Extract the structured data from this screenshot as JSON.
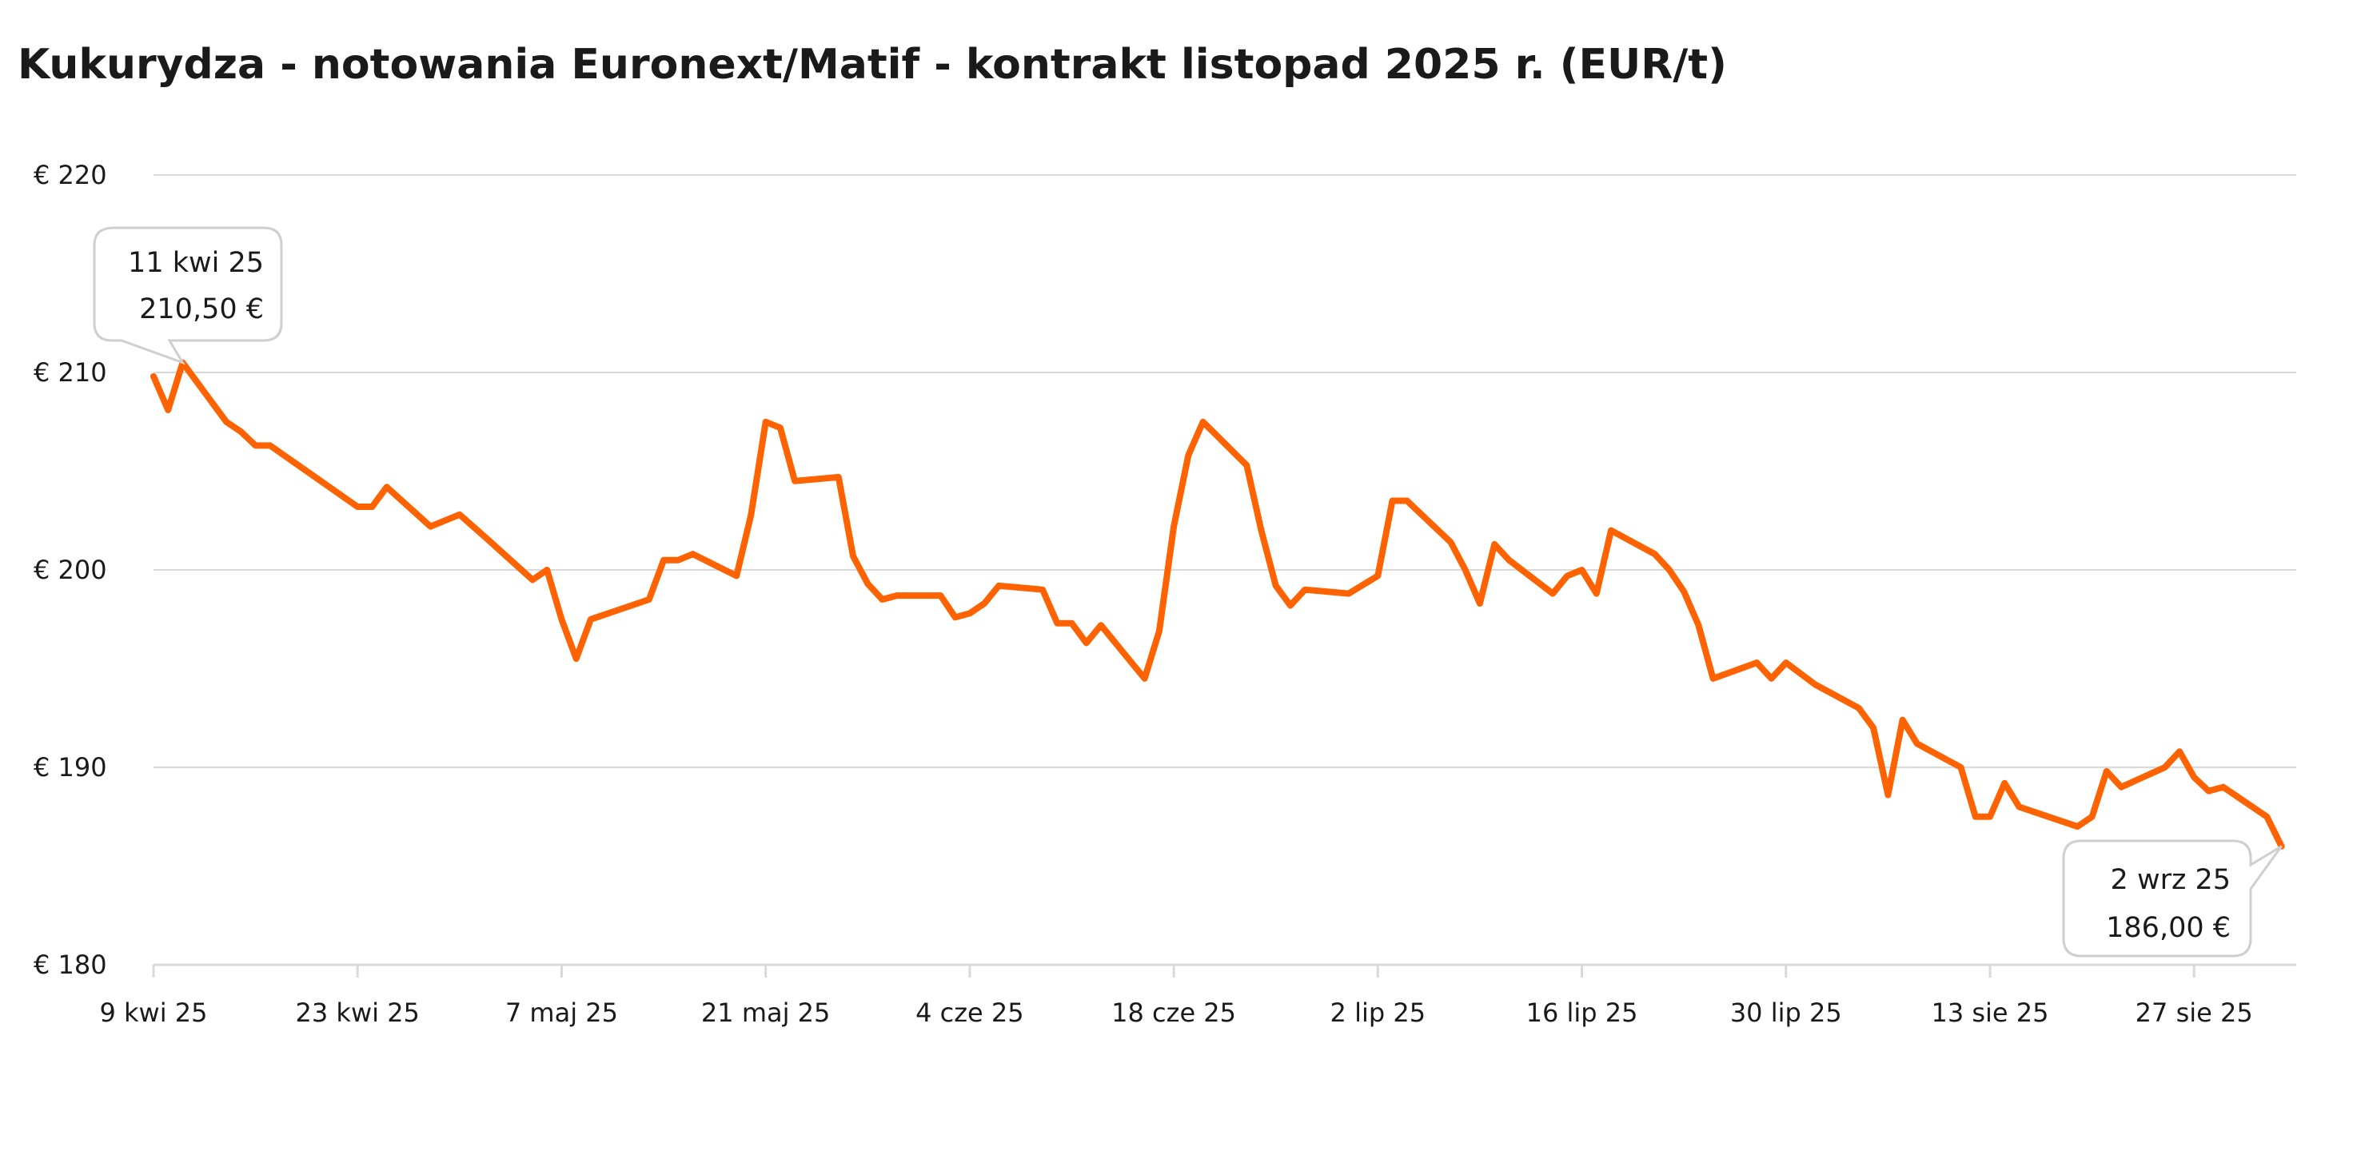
{
  "chart_data": {
    "type": "line",
    "title": "Kukurydza - notowania Euronext/Matif - kontrakt listopad 2025 r. (EUR/t)",
    "xlabel": "",
    "ylabel": "",
    "ylim": [
      180,
      220
    ],
    "xlim": [
      "2025-04-09",
      "2025-09-02"
    ],
    "yticks": [
      {
        "value": 180,
        "label": "€ 180"
      },
      {
        "value": 190,
        "label": "€ 190"
      },
      {
        "value": 200,
        "label": "€ 200"
      },
      {
        "value": 210,
        "label": "€ 210"
      },
      {
        "value": 220,
        "label": "€ 220"
      }
    ],
    "xticks": [
      {
        "date": "2025-04-09",
        "label": "9 kwi 25"
      },
      {
        "date": "2025-04-23",
        "label": "23 kwi 25"
      },
      {
        "date": "2025-05-07",
        "label": "7 maj 25"
      },
      {
        "date": "2025-05-21",
        "label": "21 maj 25"
      },
      {
        "date": "2025-06-04",
        "label": "4 cze 25"
      },
      {
        "date": "2025-06-18",
        "label": "18 cze 25"
      },
      {
        "date": "2025-07-02",
        "label": "2 lip 25"
      },
      {
        "date": "2025-07-16",
        "label": "16 lip 25"
      },
      {
        "date": "2025-07-30",
        "label": "30 lip 25"
      },
      {
        "date": "2025-08-13",
        "label": "13 sie 25"
      },
      {
        "date": "2025-08-27",
        "label": "27 sie 25"
      }
    ],
    "grid": true,
    "line_color": "#ff6200",
    "grid_color": "#d9d9d9",
    "series": [
      {
        "points": [
          [
            "2025-04-09",
            209.8
          ],
          [
            "2025-04-10",
            208.1
          ],
          [
            "2025-04-11",
            210.5
          ],
          [
            "2025-04-14",
            207.5
          ],
          [
            "2025-04-15",
            207.0
          ],
          [
            "2025-04-16",
            206.3
          ],
          [
            "2025-04-17",
            206.3
          ],
          [
            "2025-04-23",
            203.2
          ],
          [
            "2025-04-24",
            203.2
          ],
          [
            "2025-04-25",
            204.2
          ],
          [
            "2025-04-28",
            202.2
          ],
          [
            "2025-04-30",
            202.8
          ],
          [
            "2025-05-02",
            201.5
          ],
          [
            "2025-05-05",
            199.5
          ],
          [
            "2025-05-06",
            200.0
          ],
          [
            "2025-05-07",
            197.5
          ],
          [
            "2025-05-08",
            195.5
          ],
          [
            "2025-05-09",
            197.5
          ],
          [
            "2025-05-13",
            198.5
          ],
          [
            "2025-05-14",
            200.5
          ],
          [
            "2025-05-15",
            200.5
          ],
          [
            "2025-05-16",
            200.8
          ],
          [
            "2025-05-19",
            199.7
          ],
          [
            "2025-05-20",
            202.8
          ],
          [
            "2025-05-21",
            207.5
          ],
          [
            "2025-05-22",
            207.2
          ],
          [
            "2025-05-23",
            204.5
          ],
          [
            "2025-05-26",
            204.7
          ],
          [
            "2025-05-27",
            200.7
          ],
          [
            "2025-05-28",
            199.3
          ],
          [
            "2025-05-29",
            198.5
          ],
          [
            "2025-05-30",
            198.7
          ],
          [
            "2025-06-02",
            198.7
          ],
          [
            "2025-06-03",
            197.6
          ],
          [
            "2025-06-04",
            197.8
          ],
          [
            "2025-06-05",
            198.3
          ],
          [
            "2025-06-06",
            199.2
          ],
          [
            "2025-06-09",
            199.0
          ],
          [
            "2025-06-10",
            197.3
          ],
          [
            "2025-06-11",
            197.3
          ],
          [
            "2025-06-12",
            196.3
          ],
          [
            "2025-06-13",
            197.2
          ],
          [
            "2025-06-16",
            194.5
          ],
          [
            "2025-06-17",
            196.9
          ],
          [
            "2025-06-18",
            202.2
          ],
          [
            "2025-06-19",
            205.8
          ],
          [
            "2025-06-20",
            207.5
          ],
          [
            "2025-06-23",
            205.3
          ],
          [
            "2025-06-24",
            202.0
          ],
          [
            "2025-06-25",
            199.2
          ],
          [
            "2025-06-26",
            198.2
          ],
          [
            "2025-06-27",
            199.0
          ],
          [
            "2025-06-30",
            198.8
          ],
          [
            "2025-07-02",
            199.7
          ],
          [
            "2025-07-03",
            203.5
          ],
          [
            "2025-07-04",
            203.5
          ],
          [
            "2025-07-07",
            201.4
          ],
          [
            "2025-07-08",
            200.0
          ],
          [
            "2025-07-09",
            198.3
          ],
          [
            "2025-07-10",
            201.3
          ],
          [
            "2025-07-11",
            200.5
          ],
          [
            "2025-07-14",
            198.8
          ],
          [
            "2025-07-15",
            199.7
          ],
          [
            "2025-07-16",
            200.0
          ],
          [
            "2025-07-17",
            198.8
          ],
          [
            "2025-07-18",
            202.0
          ],
          [
            "2025-07-21",
            200.8
          ],
          [
            "2025-07-22",
            200.0
          ],
          [
            "2025-07-23",
            198.9
          ],
          [
            "2025-07-24",
            197.2
          ],
          [
            "2025-07-25",
            194.5
          ],
          [
            "2025-07-28",
            195.3
          ],
          [
            "2025-07-29",
            194.5
          ],
          [
            "2025-07-30",
            195.3
          ],
          [
            "2025-08-01",
            194.2
          ],
          [
            "2025-08-04",
            193.0
          ],
          [
            "2025-08-05",
            192.0
          ],
          [
            "2025-08-06",
            188.6
          ],
          [
            "2025-08-07",
            192.4
          ],
          [
            "2025-08-08",
            191.2
          ],
          [
            "2025-08-11",
            190.0
          ],
          [
            "2025-08-12",
            187.5
          ],
          [
            "2025-08-13",
            187.5
          ],
          [
            "2025-08-14",
            189.2
          ],
          [
            "2025-08-15",
            188.0
          ],
          [
            "2025-08-19",
            187.0
          ],
          [
            "2025-08-20",
            187.5
          ],
          [
            "2025-08-21",
            189.8
          ],
          [
            "2025-08-22",
            189.0
          ],
          [
            "2025-08-25",
            190.0
          ],
          [
            "2025-08-26",
            190.8
          ],
          [
            "2025-08-27",
            189.5
          ],
          [
            "2025-08-28",
            188.8
          ],
          [
            "2025-08-29",
            189.0
          ],
          [
            "2025-09-01",
            187.5
          ],
          [
            "2025-09-02",
            186.0
          ]
        ]
      }
    ],
    "annotations": [
      {
        "date": "2025-04-11",
        "value": 210.5,
        "line1": "11 kwi 25",
        "line2": "210,50 €"
      },
      {
        "date": "2025-09-02",
        "value": 186.0,
        "line1": "2 wrz 25",
        "line2": "186,00 €"
      }
    ]
  }
}
